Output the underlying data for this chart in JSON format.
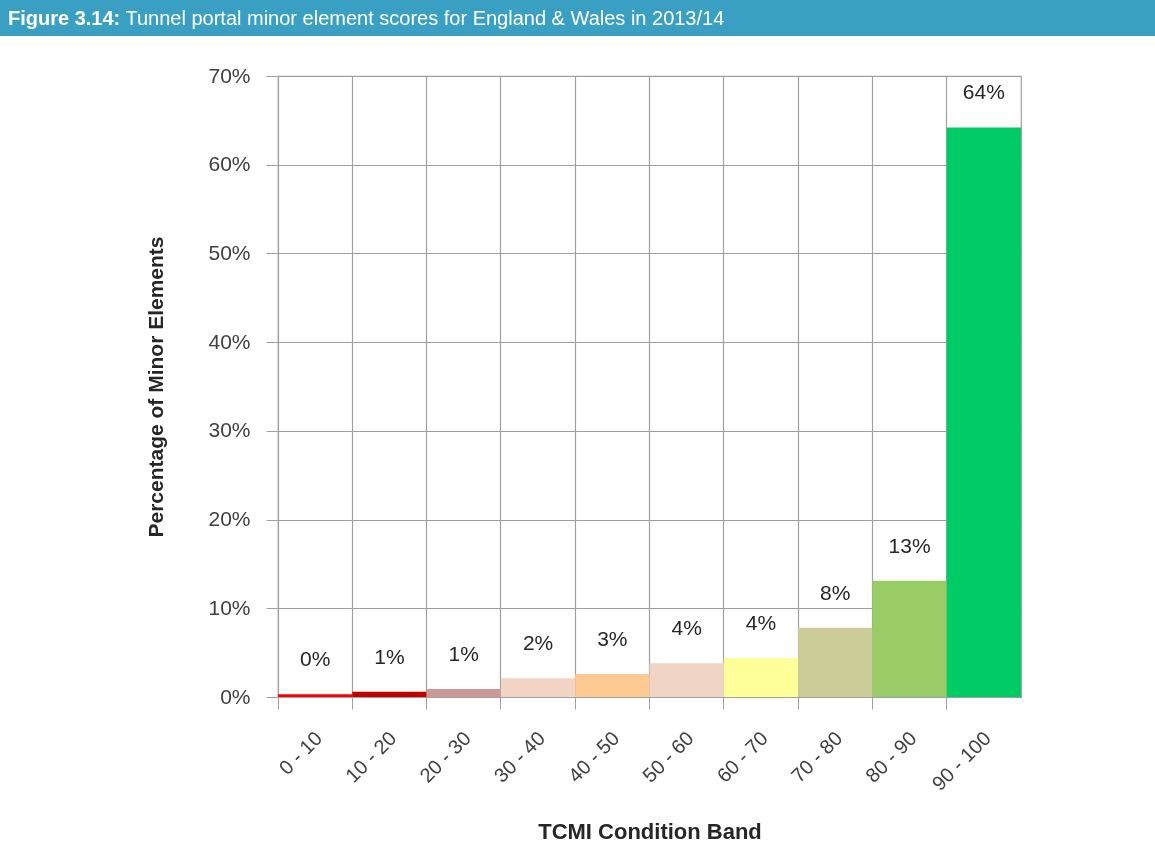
{
  "chart_data": {
    "type": "bar",
    "title": "Figure 3.14: Tunnel portal minor element scores for England & Wales in 2013/14",
    "xlabel": "TCMI Condition Band",
    "ylabel": "Percentage of Minor Elements",
    "categories": [
      "0 - 10",
      "10 - 20",
      "20 - 30",
      "30 - 40",
      "40 - 50",
      "50 - 60",
      "60 - 70",
      "70 - 80",
      "80 - 90",
      "90 - 100"
    ],
    "values": [
      0.3,
      0.6,
      0.9,
      2.1,
      2.6,
      3.8,
      4.4,
      7.8,
      13.1,
      64.2
    ],
    "colors": [
      "#ff0000",
      "#c00000",
      "#cc9999",
      "#f2d4c4",
      "#ffc992",
      "#f0d4c4",
      "#ffff99",
      "#cccc99",
      "#99cc66",
      "#00cc66"
    ],
    "value_labels": [
      "0%",
      "1%",
      "1%",
      "2%",
      "3%",
      "4%",
      "4%",
      "8%",
      "13%",
      "64%"
    ],
    "ylim": [
      0,
      70
    ],
    "yticks": [
      {
        "value": 0,
        "label": "0%"
      },
      {
        "value": 10,
        "label": "10%"
      },
      {
        "value": 20,
        "label": "20%"
      },
      {
        "value": 30,
        "label": "30%"
      },
      {
        "value": 40,
        "label": "40%"
      },
      {
        "value": 50,
        "label": "50%"
      },
      {
        "value": 60,
        "label": "60%"
      },
      {
        "value": 70,
        "label": "70%"
      }
    ],
    "grid": true
  }
}
